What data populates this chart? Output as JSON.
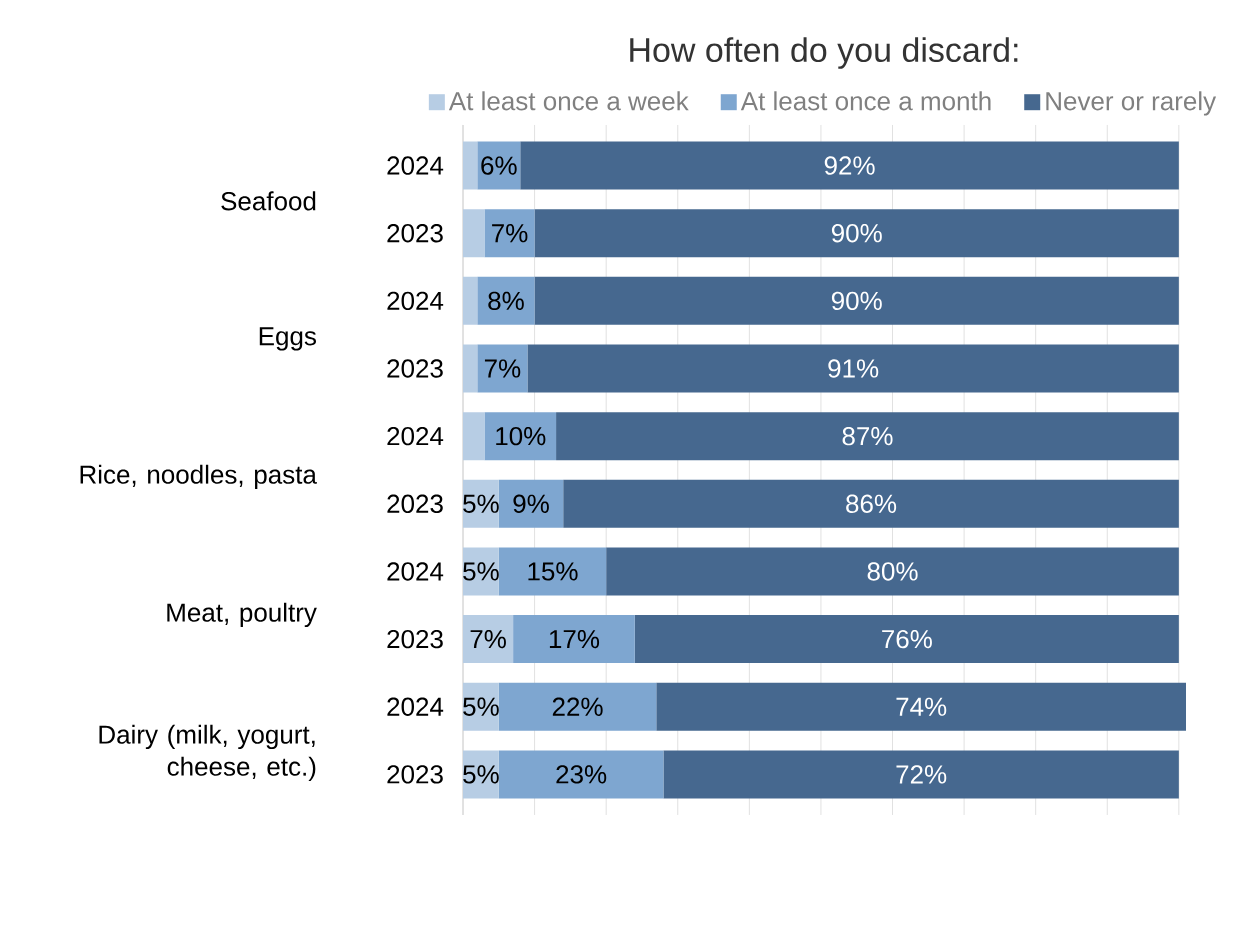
{
  "chart_data": {
    "type": "bar",
    "orientation": "horizontal",
    "stacked": true,
    "title": "How often do you discard:",
    "categories": [
      "2024",
      "2023",
      "2024",
      "2023",
      "2024",
      "2023",
      "2024",
      "2023",
      "2024",
      "2023"
    ],
    "series": [
      {
        "name": "At least once a week",
        "color": "#b7cde4",
        "values": [
          2,
          3,
          2,
          2,
          3,
          5,
          5,
          7,
          5,
          5
        ],
        "value_labels": [
          null,
          null,
          null,
          null,
          null,
          "5%",
          "5%",
          "7%",
          "5%",
          "5%"
        ]
      },
      {
        "name": "At least once a month",
        "color": "#7ea6d0",
        "values": [
          6,
          7,
          8,
          7,
          10,
          9,
          15,
          17,
          22,
          23
        ],
        "value_labels": [
          "6%",
          "7%",
          "8%",
          "7%",
          "10%",
          "9%",
          "15%",
          "17%",
          "22%",
          "23%"
        ]
      },
      {
        "name": "Never or rarely",
        "color": "#46688f",
        "values": [
          92,
          90,
          90,
          91,
          87,
          86,
          80,
          76,
          74,
          72
        ],
        "value_labels": [
          "92%",
          "90%",
          "90%",
          "91%",
          "87%",
          "86%",
          "80%",
          "76%",
          "74%",
          "72%"
        ]
      }
    ],
    "annotations": [
      "Seafood",
      "Eggs",
      "Rice, noodles, pasta",
      "Meat, poultry",
      "Dairy (milk, yogurt, cheese, etc.)"
    ],
    "tick_labels": "y",
    "grid": "x",
    "legend": "top"
  }
}
